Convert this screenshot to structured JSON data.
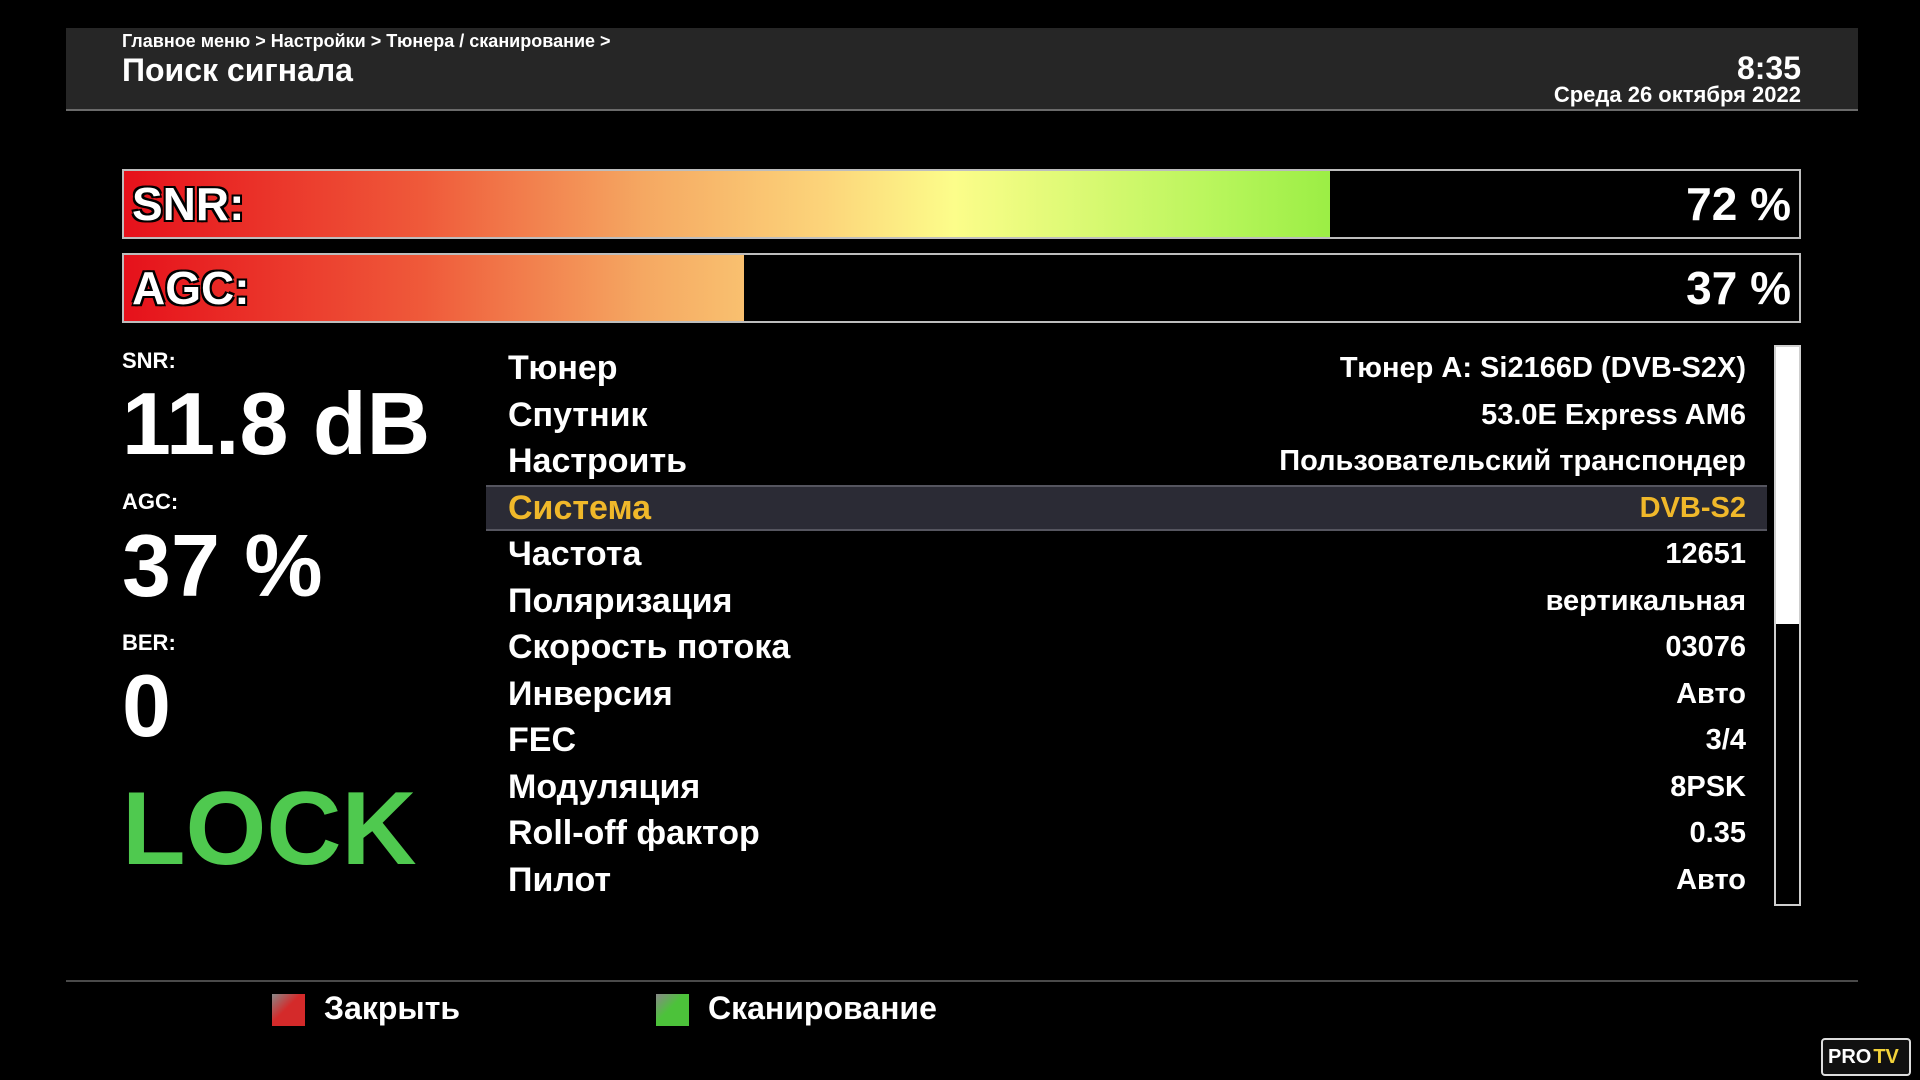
{
  "header": {
    "breadcrumb": "Главное меню > Настройки > Тюнера / сканирование >",
    "title": "Поиск сигнала",
    "time": "8:35",
    "date": "Среда 26 октября 2022"
  },
  "meters": [
    {
      "label": "SNR:",
      "value": 72,
      "value_label": "72 %"
    },
    {
      "label": "AGC:",
      "value": 37,
      "value_label": "37 %"
    }
  ],
  "status": [
    {
      "label": "SNR:",
      "value": "11.8 dB"
    },
    {
      "label": "AGC:",
      "value": "37 %"
    },
    {
      "label": "BER:",
      "value": "0"
    }
  ],
  "lock": "LOCK",
  "settings": {
    "selected": 3,
    "rows": [
      [
        "Тюнер",
        "Тюнер A: Si2166D (DVB-S2X)"
      ],
      [
        "Спутник",
        "53.0E Express AM6"
      ],
      [
        "Настроить",
        "Пользовательский транспондер"
      ],
      [
        "Система",
        "DVB-S2"
      ],
      [
        "Частота",
        "12651"
      ],
      [
        "Поляризация",
        "вертикальная"
      ],
      [
        "Скорость потока",
        "03076"
      ],
      [
        "Инверсия",
        "Авто"
      ],
      [
        "FEC",
        "3/4"
      ],
      [
        "Модуляция",
        "8PSK"
      ],
      [
        "Roll-off фактор",
        "0.35"
      ],
      [
        "Пилот",
        "Авто"
      ]
    ]
  },
  "buttons": [
    {
      "label": "Закрыть",
      "color": "#d42a2a"
    },
    {
      "label": "Сканирование",
      "color": "#4cc23a"
    }
  ],
  "watermark": [
    "PRO",
    "TV"
  ]
}
